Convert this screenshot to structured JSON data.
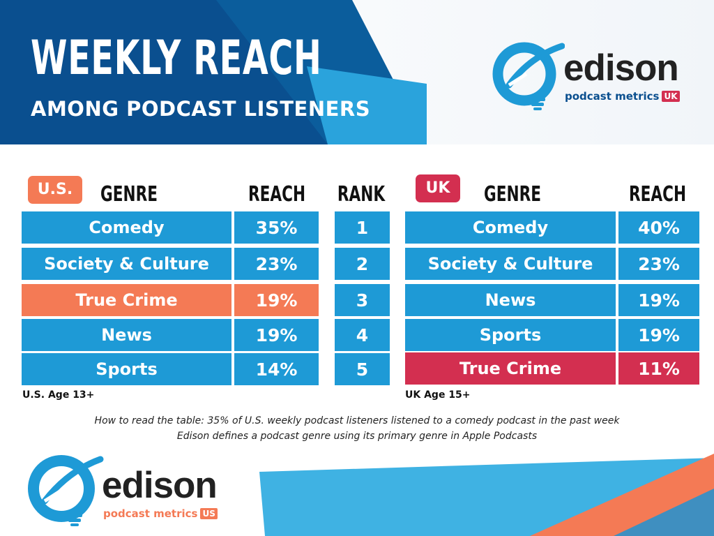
{
  "header": {
    "title": "WEEKLY REACH",
    "subtitle": "AMONG PODCAST LISTENERS"
  },
  "logos": {
    "uk": {
      "word": "edison",
      "sub": "podcast metrics",
      "badge": "UK"
    },
    "us": {
      "word": "edison",
      "sub": "podcast metrics",
      "badge": "US"
    }
  },
  "colors": {
    "blue": "#1e9ad6",
    "dark_blue": "#0a4f8f",
    "orange": "#f47a55",
    "crimson": "#d32f50",
    "light_blue": "#3fb2e3"
  },
  "chart_data": {
    "type": "table",
    "us": {
      "label": "U.S.",
      "columns": [
        "GENRE",
        "REACH"
      ],
      "rows": [
        {
          "genre": "Comedy",
          "reach": "35%"
        },
        {
          "genre": "Society & Culture",
          "reach": "23%"
        },
        {
          "genre": "True Crime",
          "reach": "19%",
          "highlight": true
        },
        {
          "genre": "News",
          "reach": "19%"
        },
        {
          "genre": "Sports",
          "reach": "14%"
        }
      ],
      "note": "U.S. Age 13+"
    },
    "rank": {
      "label": "RANK",
      "values": [
        "1",
        "2",
        "3",
        "4",
        "5"
      ]
    },
    "uk": {
      "label": "UK",
      "columns": [
        "GENRE",
        "REACH"
      ],
      "rows": [
        {
          "genre": "Comedy",
          "reach": "40%"
        },
        {
          "genre": "Society & Culture",
          "reach": "23%"
        },
        {
          "genre": "News",
          "reach": "19%"
        },
        {
          "genre": "Sports",
          "reach": "19%"
        },
        {
          "genre": "True Crime",
          "reach": "11%",
          "highlight": true
        }
      ],
      "note": "UK Age 15+"
    }
  },
  "footnotes": [
    "How to read the table: 35% of U.S. weekly podcast listeners listened to a comedy podcast in the past week",
    "Edison defines a podcast genre using its primary genre in Apple Podcasts"
  ]
}
